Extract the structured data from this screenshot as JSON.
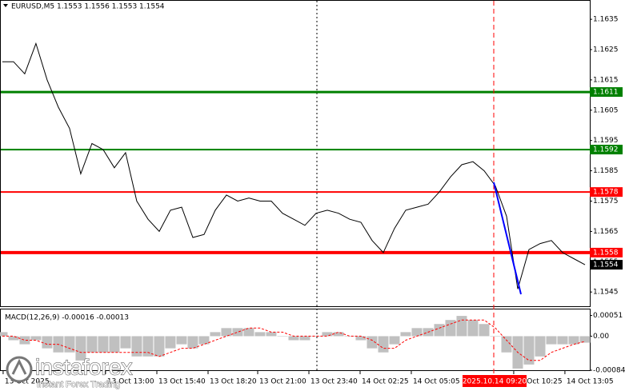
{
  "chart_data": [
    {
      "type": "line",
      "title": "EURUSD,M5 1.1553 1.1556 1.1553 1.1554",
      "color": "#000000",
      "values": [
        1.1621,
        1.1621,
        1.1617,
        1.1627,
        1.1615,
        1.1606,
        1.1599,
        1.1584,
        1.1594,
        1.1592,
        1.1586,
        1.1591,
        1.1575,
        1.1569,
        1.1565,
        1.1572,
        1.1573,
        1.1563,
        1.1564,
        1.1572,
        1.1577,
        1.1575,
        1.1576,
        1.1575,
        1.1575,
        1.1571,
        1.1569,
        1.1567,
        1.1571,
        1.1572,
        1.1571,
        1.1569,
        1.1568,
        1.1562,
        1.1558,
        1.1566,
        1.1572,
        1.1573,
        1.1574,
        1.1578,
        1.1583,
        1.1587,
        1.1588,
        1.1585,
        1.158,
        1.157,
        1.1546,
        1.1559,
        1.1561,
        1.1562,
        1.1558,
        1.1556,
        1.1554
      ],
      "xlim": [
        -0.21,
        52.43
      ],
      "xticks": [
        {
          "value": 0.07,
          "label": "13 Oct 2025"
        },
        {
          "value": 9.21,
          "label": "13 Oct 13:00"
        },
        {
          "value": 13.79,
          "label": "13 Oct 15:40"
        },
        {
          "value": 18.36,
          "label": "13 Oct 18:20"
        },
        {
          "value": 22.79,
          "label": "13 Oct 21:00"
        },
        {
          "value": 27.36,
          "label": "13 Oct 23:40"
        },
        {
          "value": 31.93,
          "label": "14 Oct 02:25"
        },
        {
          "value": 36.5,
          "label": "14 Oct 05:05"
        },
        {
          "value": 45.64,
          "label": "14 Oct 10:25"
        },
        {
          "value": 50.21,
          "label": "14 Oct 13:05"
        }
      ],
      "ylim": [
        1.15403,
        1.16411
      ],
      "yticks": [
        1.1635,
        1.1625,
        1.1615,
        1.1605,
        1.1595,
        1.1585,
        1.1575,
        1.1565,
        1.1555,
        1.1545
      ],
      "levels": [
        {
          "value": 1.1611,
          "color": "#008000",
          "width": 3
        },
        {
          "value": 1.1592,
          "color": "#008000",
          "width": 2
        },
        {
          "value": 1.1578,
          "color": "#ff0000",
          "width": 2
        },
        {
          "value": 1.1558,
          "color": "#ff0000",
          "width": 4
        }
      ],
      "last_price": 1.1554,
      "crosshair_label": "2025.10.14 09:20"
    },
    {
      "type": "macd",
      "title": "MACD(12,26,9) -0.00016 -0.00013",
      "series": [
        {
          "type": "histogram",
          "color": "#c0c0c0",
          "values": [
            0.0001,
            -0.0001,
            -0.0002,
            -0.0001,
            -0.0003,
            -0.0004,
            -0.0004,
            -0.0006,
            -0.0004,
            -0.0004,
            -0.0004,
            -0.0003,
            -0.0005,
            -0.0005,
            -0.0005,
            -0.0003,
            -0.0002,
            -0.0003,
            -0.0002,
            0.0001,
            0.0002,
            0.0002,
            0.0002,
            0.0001,
            0.0001,
            0,
            -0.0001,
            -0.0001,
            0,
            0.0001,
            0.0001,
            0,
            -0.0001,
            -0.0003,
            -0.0004,
            -0.0002,
            0.0001,
            0.0002,
            0.0002,
            0.0003,
            0.0004,
            0.0005,
            0.0004,
            0.0003,
            0,
            -0.0004,
            -0.0008,
            -0.0007,
            -0.0005,
            -0.0002,
            -0.0002,
            -0.0002,
            -0.00016
          ]
        },
        {
          "type": "line",
          "color": "#ff0000",
          "values": [
            0,
            0,
            -0.0001,
            -0.0001,
            -0.0002,
            -0.0002,
            -0.0003,
            -0.0004,
            -0.0004,
            -0.0004,
            -0.0004,
            -0.0004,
            -0.0004,
            -0.0004,
            -0.0005,
            -0.0004,
            -0.0003,
            -0.0003,
            -0.0002,
            -0.0001,
            0,
            0.0001,
            0.0002,
            0.0002,
            0.0001,
            0.0001,
            0,
            0,
            0,
            0,
            0.0001,
            0,
            0,
            -0.0001,
            -0.0003,
            -0.0003,
            -0.0001,
            0,
            0.0001,
            0.0002,
            0.0003,
            0.0004,
            0.0004,
            0.0004,
            0.0002,
            -0.0001,
            -0.0004,
            -0.0006,
            -0.0006,
            -0.0004,
            -0.0003,
            -0.0002,
            -0.00013
          ]
        }
      ],
      "ylim": [
        -0.00084,
        0.00066
      ],
      "yticks": [
        0.00051,
        {
          "value": 0,
          "label": "0.00"
        },
        -0.00084
      ]
    }
  ],
  "watermark": {
    "brand": "instaforex",
    "tagline": "Instant Forex Trading"
  }
}
